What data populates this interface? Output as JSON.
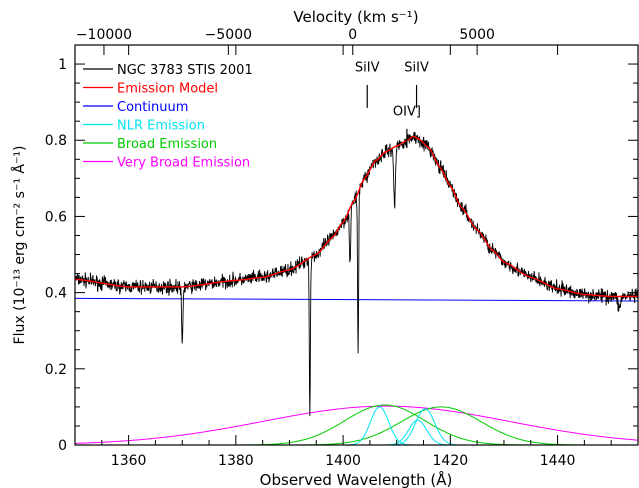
{
  "chart_data": {
    "type": "line",
    "xlabel": "Observed Wavelength (Å)",
    "ylabel": "Flux (10⁻¹³ erg cm⁻² s⁻¹ Å⁻¹)",
    "top_axis_label": "Velocity (km s⁻¹)",
    "xlim": [
      1350,
      1455
    ],
    "ylim": [
      0,
      1.05
    ],
    "x_ticks": [
      1360,
      1380,
      1400,
      1420,
      1440
    ],
    "y_ticks": [
      0,
      0.2,
      0.4,
      0.6,
      0.8,
      1
    ],
    "y_tick_labels": [
      "0",
      "0.2",
      "0.4",
      "0.6",
      "0.8",
      "1"
    ],
    "top_ticks": [
      {
        "label": "−10000",
        "wavelength": 1355.4
      },
      {
        "label": "−5000",
        "wavelength": 1378.6
      },
      {
        "label": "0",
        "wavelength": 1401.8
      },
      {
        "label": "5000",
        "wavelength": 1425.0
      }
    ],
    "grid": false,
    "legend_position": "top-left",
    "legend": [
      {
        "label": "NGC 3783 STIS 2001",
        "color": "#000000"
      },
      {
        "label": "Emission Model",
        "color": "#ff0000"
      },
      {
        "label": "Continuum",
        "color": "#0000ff"
      },
      {
        "label": "NLR Emission",
        "color": "#00e5ee"
      },
      {
        "label": "Broad Emission",
        "color": "#00cc00"
      },
      {
        "label": "Very Broad Emission",
        "color": "#ff00ff"
      }
    ],
    "annotations": [
      {
        "label": "SiIV",
        "x": 1404.5,
        "y_text": 0.98,
        "tick_top": 0.945,
        "tick_bottom": 0.885
      },
      {
        "label": "SiIV",
        "x": 1413.7,
        "y_text": 0.98,
        "tick_top": 0.945,
        "tick_bottom": 0.885
      },
      {
        "label": "OIV]",
        "x": 1411.9,
        "y_text": 0.865,
        "tick_top": 0.83,
        "tick_bottom": 0.78
      }
    ],
    "continuum": {
      "x": [
        1350,
        1455
      ],
      "y": [
        0.385,
        0.378
      ]
    },
    "model": {
      "x": [
        1350,
        1360,
        1370,
        1380,
        1385,
        1390,
        1395,
        1398,
        1400,
        1402,
        1404,
        1406,
        1408,
        1410,
        1412,
        1413,
        1414,
        1416,
        1418,
        1420,
        1422,
        1425,
        1428,
        1430,
        1435,
        1440,
        1445,
        1450,
        1455
      ],
      "y": [
        0.435,
        0.415,
        0.415,
        0.432,
        0.44,
        0.46,
        0.5,
        0.545,
        0.585,
        0.64,
        0.7,
        0.745,
        0.77,
        0.785,
        0.8,
        0.81,
        0.805,
        0.78,
        0.73,
        0.68,
        0.625,
        0.565,
        0.51,
        0.48,
        0.44,
        0.41,
        0.395,
        0.39,
        0.39
      ]
    },
    "absorption": [
      {
        "x": 1370.0,
        "min": 0.265,
        "width": 0.25
      },
      {
        "x": 1393.8,
        "min": 0.08,
        "width": 0.2
      },
      {
        "x": 1401.3,
        "min": 0.48,
        "width": 0.25
      },
      {
        "x": 1402.8,
        "min": 0.24,
        "width": 0.2
      },
      {
        "x": 1409.6,
        "min": 0.62,
        "width": 0.3
      },
      {
        "x": 1451.5,
        "min": 0.355,
        "width": 0.4
      }
    ],
    "nlr_components": [
      {
        "center": 1406.8,
        "amplitude": 0.1,
        "sigma": 1.7
      },
      {
        "center": 1413.9,
        "amplitude": 0.065,
        "sigma": 1.7
      },
      {
        "center": 1415.3,
        "amplitude": 0.095,
        "sigma": 1.8
      }
    ],
    "broad_components": [
      {
        "center": 1407.8,
        "amplitude": 0.105,
        "sigma": 7.5
      },
      {
        "center": 1418.3,
        "amplitude": 0.1,
        "sigma": 7.5
      }
    ],
    "very_broad_components": [
      {
        "center": 1408.0,
        "amplitude": 0.102,
        "sigma": 23
      }
    ]
  }
}
